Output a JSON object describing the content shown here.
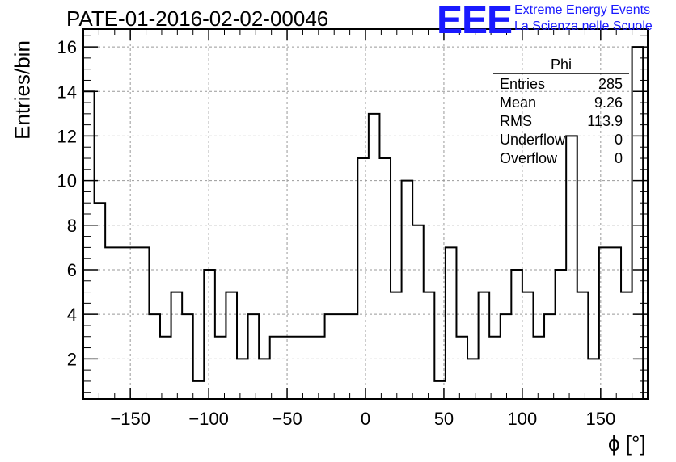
{
  "title": "PATE-01-2016-02-02-00046",
  "logo": {
    "letters": "EEE",
    "line1": "Extreme Energy Events",
    "line2": "La Scienza nelle Scuole",
    "color": "#1a1aff"
  },
  "stats": {
    "name": "Phi",
    "rows": [
      {
        "label": "Entries",
        "value": "285"
      },
      {
        "label": "Mean",
        "value": "9.26"
      },
      {
        "label": "RMS",
        "value": "113.9"
      },
      {
        "label": "Underflow",
        "value": "0"
      },
      {
        "label": "Overflow",
        "value": "0"
      }
    ]
  },
  "chart_data": {
    "type": "histogram",
    "title": "PATE-01-2016-02-02-00046",
    "xlabel": "ϕ [°]",
    "ylabel": "Entries/bin",
    "xlim": [
      -180,
      180
    ],
    "ylim": [
      0.2,
      16.8
    ],
    "xticks": [
      -150,
      -100,
      -50,
      0,
      50,
      100,
      150
    ],
    "yticks": [
      2,
      4,
      6,
      8,
      10,
      12,
      14,
      16
    ],
    "grid": true,
    "bin_edges": [
      -180,
      -173,
      -166,
      -159,
      -152,
      -145,
      -138,
      -131,
      -124,
      -117,
      -110,
      -103,
      -96,
      -89,
      -82,
      -75,
      -68,
      -61,
      -54,
      -47,
      -40,
      -33,
      -26,
      -19,
      -12,
      -5,
      2,
      9,
      16,
      23,
      30,
      37,
      44,
      51,
      58,
      65,
      72,
      79,
      86,
      93,
      100,
      107,
      114,
      121,
      128,
      135,
      142,
      149,
      156,
      163,
      170,
      177
    ],
    "values": [
      14,
      9,
      7,
      7,
      7,
      7,
      4,
      3,
      5,
      4,
      1,
      6,
      3,
      5,
      2,
      4,
      2,
      3,
      3,
      3,
      3,
      3,
      4,
      4,
      4,
      11,
      13,
      11,
      5,
      10,
      8,
      5,
      1,
      7,
      3,
      2,
      5,
      3,
      4,
      6,
      5,
      3,
      4,
      6,
      12,
      5,
      2,
      7,
      7,
      5,
      16
    ],
    "color": "#000000"
  }
}
